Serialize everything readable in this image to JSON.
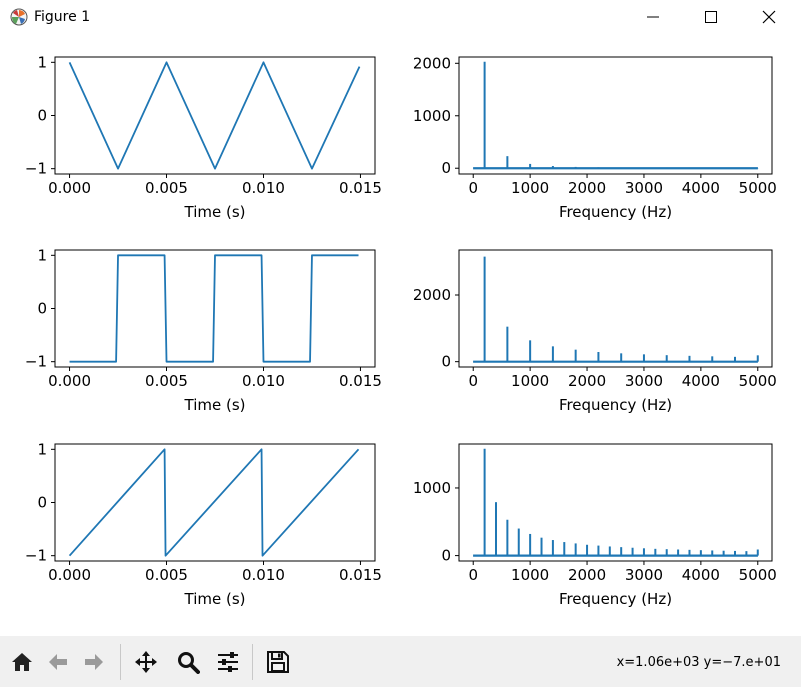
{
  "window": {
    "title": "Figure 1",
    "buttons": {
      "minimize": "minimize-icon",
      "maximize": "maximize-icon",
      "close": "close-icon"
    }
  },
  "toolbar": {
    "buttons": [
      "home-icon",
      "back-icon",
      "forward-icon",
      "pan-icon",
      "zoom-icon",
      "configure-subplots-icon",
      "save-icon"
    ],
    "coordinates": "x=1.06e+03 y=−7.e+01"
  },
  "colors": {
    "line": "#1f77b4"
  },
  "chart_data": [
    {
      "type": "line",
      "title": "",
      "xlabel": "Time (s)",
      "ylabel": "",
      "xlim": [
        -0.00075,
        0.01575
      ],
      "ylim": [
        -1.1,
        1.1
      ],
      "xticks": [
        0.0,
        0.005,
        0.01,
        0.015
      ],
      "xticklabels": [
        "0.000",
        "0.005",
        "0.010",
        "0.015"
      ],
      "yticks": [
        -1,
        0,
        1
      ],
      "yticklabels": [
        "−1",
        "0",
        "1"
      ],
      "grid": false,
      "series": [
        {
          "x": [
            0.0,
            0.0025,
            0.005,
            0.0075,
            0.01,
            0.0125,
            0.01495
          ],
          "y": [
            1,
            -1,
            1,
            -1,
            1,
            -1,
            0.92
          ]
        }
      ]
    },
    {
      "type": "line",
      "title": "",
      "xlabel": "Frequency (Hz)",
      "ylabel": "",
      "xlim": [
        -250,
        5250
      ],
      "ylim": [
        -110,
        2120
      ],
      "xticks": [
        0,
        1000,
        2000,
        3000,
        4000,
        5000
      ],
      "xticklabels": [
        "0",
        "1000",
        "2000",
        "3000",
        "4000",
        "5000"
      ],
      "yticks": [
        0,
        1000,
        2000
      ],
      "yticklabels": [
        "0",
        "1000",
        "2000"
      ],
      "grid": false,
      "peaks": {
        "x": [
          200,
          600,
          1000,
          1400,
          1800,
          2200,
          2600,
          3000,
          3400,
          3800,
          4200,
          4600,
          5000
        ],
        "y": [
          2030,
          230,
          82,
          42,
          25,
          17,
          12,
          9,
          7,
          6,
          5,
          4,
          3
        ]
      }
    },
    {
      "type": "line",
      "title": "",
      "xlabel": "Time (s)",
      "ylabel": "",
      "xlim": [
        -0.00075,
        0.01575
      ],
      "ylim": [
        -1.1,
        1.1
      ],
      "xticks": [
        0.0,
        0.005,
        0.01,
        0.015
      ],
      "xticklabels": [
        "0.000",
        "0.005",
        "0.010",
        "0.015"
      ],
      "yticks": [
        -1,
        0,
        1
      ],
      "yticklabels": [
        "−1",
        "0",
        "1"
      ],
      "grid": false,
      "series": [
        {
          "x": [
            0.0,
            0.0024,
            0.0025,
            0.0049,
            0.005,
            0.0074,
            0.0075,
            0.0099,
            0.01,
            0.0124,
            0.0125,
            0.0149
          ],
          "y": [
            -1,
            -1,
            1,
            1,
            -1,
            -1,
            1,
            1,
            -1,
            -1,
            1,
            1
          ]
        }
      ]
    },
    {
      "type": "line",
      "title": "",
      "xlabel": "Frequency (Hz)",
      "ylabel": "",
      "xlim": [
        -250,
        5250
      ],
      "ylim": [
        -160,
        3350
      ],
      "xticks": [
        0,
        1000,
        2000,
        3000,
        4000,
        5000
      ],
      "xticklabels": [
        "0",
        "1000",
        "2000",
        "3000",
        "4000",
        "5000"
      ],
      "yticks": [
        0,
        2000
      ],
      "yticklabels": [
        "0",
        "2000"
      ],
      "grid": false,
      "peaks": {
        "x": [
          200,
          600,
          1000,
          1400,
          1800,
          2200,
          2600,
          3000,
          3400,
          3800,
          4200,
          4600,
          5000
        ],
        "y": [
          3150,
          1050,
          640,
          460,
          360,
          290,
          250,
          220,
          195,
          175,
          160,
          145,
          190
        ]
      }
    },
    {
      "type": "line",
      "title": "",
      "xlabel": "Time (s)",
      "ylabel": "",
      "xlim": [
        -0.00075,
        0.01575
      ],
      "ylim": [
        -1.1,
        1.1
      ],
      "xticks": [
        0.0,
        0.005,
        0.01,
        0.015
      ],
      "xticklabels": [
        "0.000",
        "0.005",
        "0.010",
        "0.015"
      ],
      "yticks": [
        -1,
        0,
        1
      ],
      "yticklabels": [
        "−1",
        "0",
        "1"
      ],
      "grid": false,
      "series": [
        {
          "x": [
            0.0,
            0.0049,
            0.00495,
            0.0099,
            0.00995,
            0.0149
          ],
          "y": [
            -1,
            1,
            -1,
            1,
            -1,
            1
          ]
        }
      ]
    },
    {
      "type": "line",
      "title": "",
      "xlabel": "Frequency (Hz)",
      "ylabel": "",
      "xlim": [
        -250,
        5250
      ],
      "ylim": [
        -80,
        1650
      ],
      "xticks": [
        0,
        1000,
        2000,
        3000,
        4000,
        5000
      ],
      "xticklabels": [
        "0",
        "1000",
        "2000",
        "3000",
        "4000",
        "5000"
      ],
      "yticks": [
        0,
        1000
      ],
      "yticklabels": [
        "0",
        "1000"
      ],
      "grid": false,
      "peaks": {
        "x": [
          200,
          400,
          600,
          800,
          1000,
          1200,
          1400,
          1600,
          1800,
          2000,
          2200,
          2400,
          2600,
          2800,
          3000,
          3200,
          3400,
          3600,
          3800,
          4000,
          4200,
          4400,
          4600,
          4800,
          5000
        ],
        "y": [
          1580,
          790,
          530,
          400,
          320,
          265,
          230,
          200,
          180,
          160,
          148,
          135,
          125,
          116,
          108,
          100,
          95,
          90,
          85,
          80,
          76,
          72,
          69,
          66,
          90
        ]
      }
    }
  ]
}
